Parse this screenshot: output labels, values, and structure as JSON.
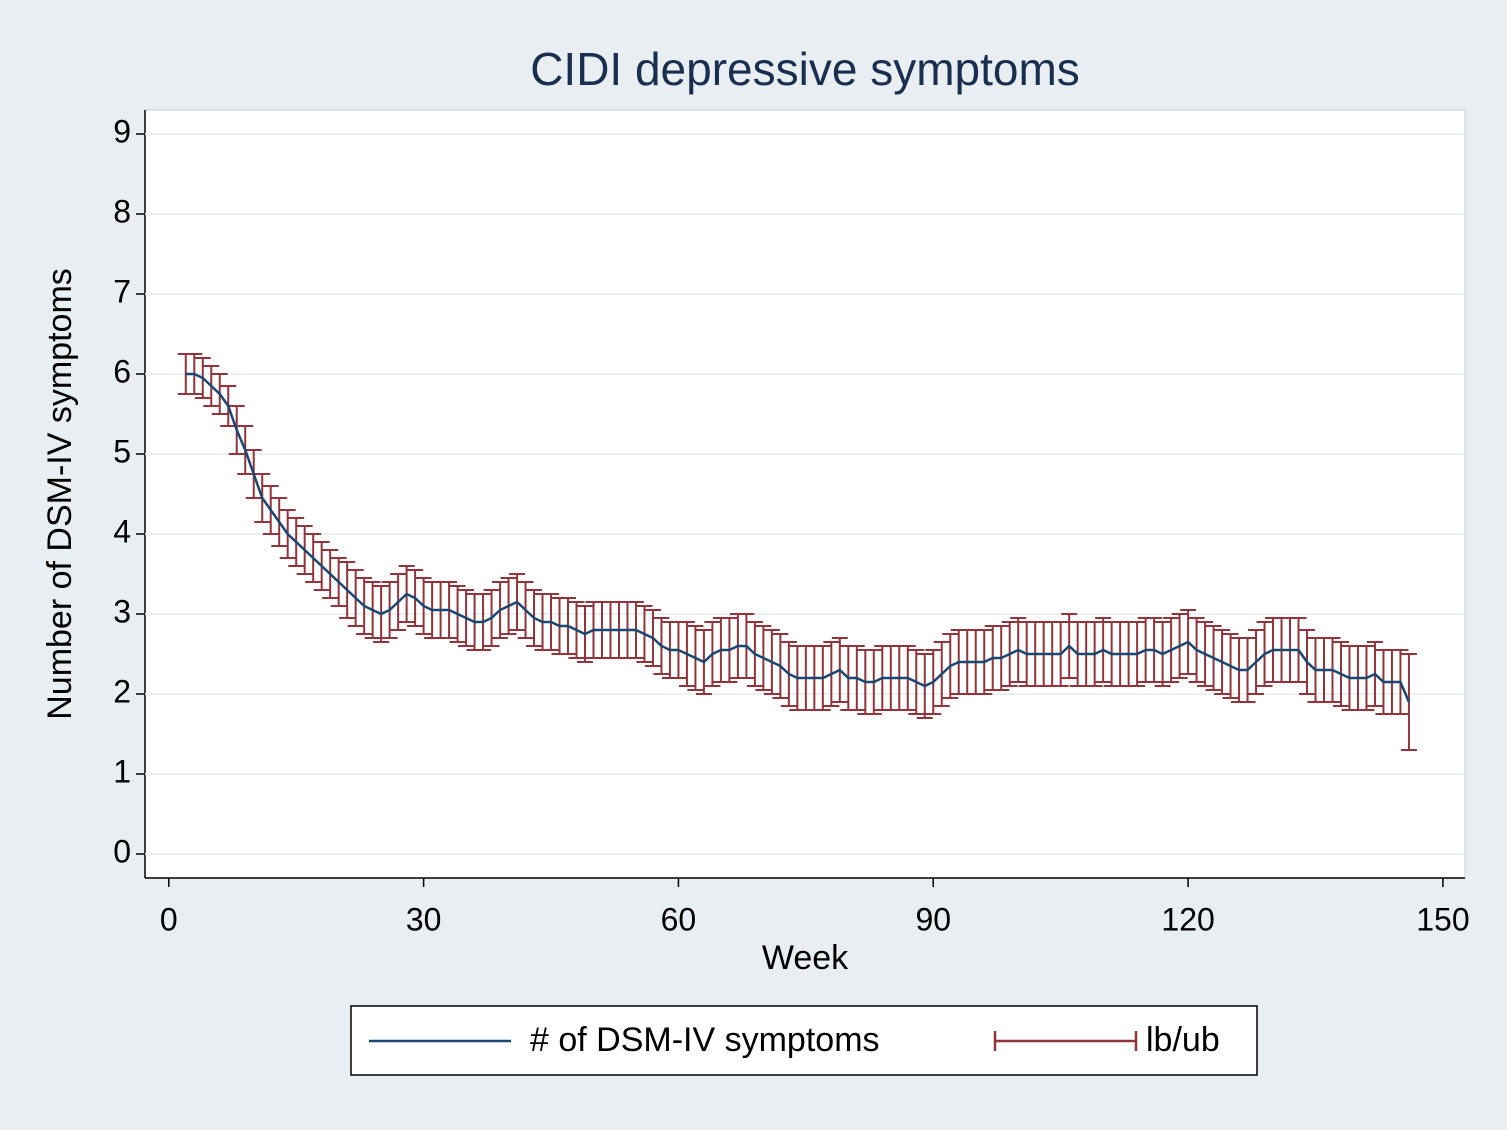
{
  "chart_data": {
    "type": "line",
    "title": "CIDI depressive symptoms",
    "xlabel": "Week",
    "ylabel": "Number of DSM-IV symptoms",
    "x": [
      2,
      3,
      4,
      5,
      6,
      7,
      8,
      9,
      10,
      11,
      12,
      13,
      14,
      15,
      16,
      17,
      18,
      19,
      20,
      21,
      22,
      23,
      24,
      25,
      26,
      27,
      28,
      29,
      30,
      31,
      32,
      33,
      34,
      35,
      36,
      37,
      38,
      39,
      40,
      41,
      42,
      43,
      44,
      45,
      46,
      47,
      48,
      49,
      50,
      51,
      52,
      53,
      54,
      55,
      56,
      57,
      58,
      59,
      60,
      61,
      62,
      63,
      64,
      65,
      66,
      67,
      68,
      69,
      70,
      71,
      72,
      73,
      74,
      75,
      76,
      77,
      78,
      79,
      80,
      81,
      82,
      83,
      84,
      85,
      86,
      87,
      88,
      89,
      90,
      91,
      92,
      93,
      94,
      95,
      96,
      97,
      98,
      99,
      100,
      101,
      102,
      103,
      104,
      105,
      106,
      107,
      108,
      109,
      110,
      111,
      112,
      113,
      114,
      115,
      116,
      117,
      118,
      119,
      120,
      121,
      122,
      123,
      124,
      125,
      126,
      127,
      128,
      129,
      130,
      131,
      132,
      133,
      134,
      135,
      136,
      137,
      138,
      139,
      140,
      141,
      142,
      143,
      144,
      145,
      146
    ],
    "series": [
      {
        "name": "# of DSM-IV symptoms",
        "color": "#1a476f",
        "values": [
          6.0,
          6.0,
          5.95,
          5.85,
          5.75,
          5.6,
          5.3,
          5.05,
          4.75,
          4.45,
          4.3,
          4.15,
          4.0,
          3.9,
          3.8,
          3.7,
          3.6,
          3.5,
          3.4,
          3.3,
          3.2,
          3.1,
          3.05,
          3.0,
          3.05,
          3.15,
          3.25,
          3.2,
          3.1,
          3.05,
          3.05,
          3.05,
          3.0,
          2.95,
          2.9,
          2.9,
          2.95,
          3.05,
          3.1,
          3.15,
          3.05,
          2.95,
          2.9,
          2.9,
          2.85,
          2.85,
          2.8,
          2.75,
          2.8,
          2.8,
          2.8,
          2.8,
          2.8,
          2.8,
          2.75,
          2.7,
          2.6,
          2.55,
          2.55,
          2.5,
          2.45,
          2.4,
          2.5,
          2.55,
          2.55,
          2.6,
          2.6,
          2.5,
          2.45,
          2.4,
          2.35,
          2.25,
          2.2,
          2.2,
          2.2,
          2.2,
          2.25,
          2.3,
          2.2,
          2.2,
          2.15,
          2.15,
          2.2,
          2.2,
          2.2,
          2.2,
          2.15,
          2.1,
          2.15,
          2.25,
          2.35,
          2.4,
          2.4,
          2.4,
          2.4,
          2.45,
          2.45,
          2.5,
          2.55,
          2.5,
          2.5,
          2.5,
          2.5,
          2.5,
          2.6,
          2.5,
          2.5,
          2.5,
          2.55,
          2.5,
          2.5,
          2.5,
          2.5,
          2.55,
          2.55,
          2.5,
          2.55,
          2.6,
          2.65,
          2.55,
          2.5,
          2.45,
          2.4,
          2.35,
          2.3,
          2.3,
          2.4,
          2.5,
          2.55,
          2.55,
          2.55,
          2.55,
          2.4,
          2.3,
          2.3,
          2.3,
          2.25,
          2.2,
          2.2,
          2.2,
          2.25,
          2.15,
          2.15,
          2.15,
          1.9
        ]
      }
    ],
    "error_bars": {
      "name": "lb/ub",
      "color": "#90353b",
      "lower": [
        5.75,
        5.75,
        5.7,
        5.6,
        5.5,
        5.35,
        5.0,
        4.75,
        4.45,
        4.15,
        4.0,
        3.85,
        3.7,
        3.6,
        3.5,
        3.4,
        3.3,
        3.2,
        3.1,
        2.95,
        2.85,
        2.75,
        2.7,
        2.65,
        2.7,
        2.8,
        2.9,
        2.85,
        2.75,
        2.7,
        2.7,
        2.7,
        2.65,
        2.6,
        2.55,
        2.55,
        2.6,
        2.7,
        2.75,
        2.8,
        2.7,
        2.6,
        2.55,
        2.55,
        2.5,
        2.5,
        2.45,
        2.4,
        2.45,
        2.45,
        2.45,
        2.45,
        2.45,
        2.45,
        2.4,
        2.35,
        2.25,
        2.2,
        2.2,
        2.1,
        2.05,
        2.0,
        2.1,
        2.15,
        2.15,
        2.2,
        2.2,
        2.1,
        2.05,
        2.0,
        1.95,
        1.85,
        1.8,
        1.8,
        1.8,
        1.8,
        1.85,
        1.9,
        1.8,
        1.8,
        1.75,
        1.75,
        1.8,
        1.8,
        1.8,
        1.8,
        1.75,
        1.7,
        1.75,
        1.85,
        1.95,
        2.0,
        2.0,
        2.0,
        2.0,
        2.05,
        2.05,
        2.1,
        2.15,
        2.1,
        2.1,
        2.1,
        2.1,
        2.1,
        2.2,
        2.1,
        2.1,
        2.1,
        2.15,
        2.1,
        2.1,
        2.1,
        2.1,
        2.15,
        2.15,
        2.1,
        2.15,
        2.2,
        2.25,
        2.15,
        2.1,
        2.05,
        2.0,
        1.95,
        1.9,
        1.9,
        2.0,
        2.1,
        2.15,
        2.15,
        2.15,
        2.15,
        2.0,
        1.9,
        1.9,
        1.9,
        1.85,
        1.8,
        1.8,
        1.8,
        1.85,
        1.75,
        1.75,
        1.75,
        1.3
      ],
      "upper": [
        6.25,
        6.25,
        6.2,
        6.1,
        6.0,
        5.85,
        5.6,
        5.35,
        5.05,
        4.75,
        4.6,
        4.45,
        4.3,
        4.2,
        4.1,
        4.0,
        3.9,
        3.8,
        3.7,
        3.65,
        3.55,
        3.45,
        3.4,
        3.35,
        3.4,
        3.5,
        3.6,
        3.55,
        3.45,
        3.4,
        3.4,
        3.4,
        3.35,
        3.3,
        3.25,
        3.25,
        3.3,
        3.4,
        3.45,
        3.5,
        3.4,
        3.3,
        3.25,
        3.25,
        3.2,
        3.2,
        3.15,
        3.1,
        3.15,
        3.15,
        3.15,
        3.15,
        3.15,
        3.15,
        3.1,
        3.05,
        2.95,
        2.9,
        2.9,
        2.9,
        2.85,
        2.8,
        2.9,
        2.95,
        2.95,
        3.0,
        3.0,
        2.9,
        2.85,
        2.8,
        2.75,
        2.65,
        2.6,
        2.6,
        2.6,
        2.6,
        2.65,
        2.7,
        2.6,
        2.6,
        2.55,
        2.55,
        2.6,
        2.6,
        2.6,
        2.6,
        2.55,
        2.5,
        2.55,
        2.65,
        2.75,
        2.8,
        2.8,
        2.8,
        2.8,
        2.85,
        2.85,
        2.9,
        2.95,
        2.9,
        2.9,
        2.9,
        2.9,
        2.9,
        3.0,
        2.9,
        2.9,
        2.9,
        2.95,
        2.9,
        2.9,
        2.9,
        2.9,
        2.95,
        2.95,
        2.9,
        2.95,
        3.0,
        3.05,
        2.95,
        2.9,
        2.85,
        2.8,
        2.75,
        2.7,
        2.7,
        2.8,
        2.9,
        2.95,
        2.95,
        2.95,
        2.95,
        2.8,
        2.7,
        2.7,
        2.7,
        2.65,
        2.6,
        2.6,
        2.6,
        2.65,
        2.55,
        2.55,
        2.55,
        2.5
      ]
    },
    "xlim": [
      -2.8,
      152.6
    ],
    "ylim": [
      -0.3,
      9.3
    ],
    "xticks": [
      0,
      30,
      60,
      90,
      120,
      150
    ],
    "yticks": [
      0,
      1,
      2,
      3,
      4,
      5,
      6,
      7,
      8,
      9
    ],
    "grid": true
  }
}
